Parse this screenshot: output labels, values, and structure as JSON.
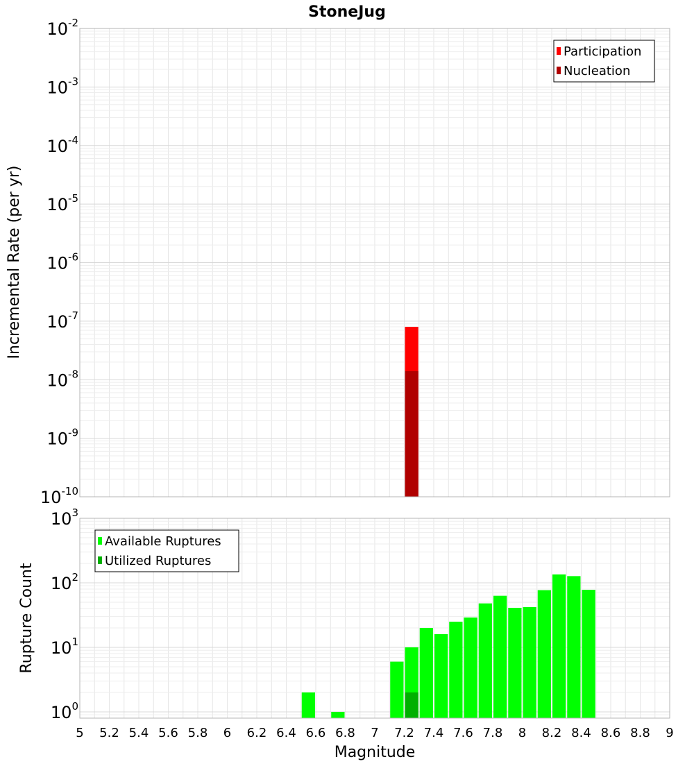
{
  "title": "StoneJug",
  "xlabel": "Magnitude",
  "x_ticks": [
    "5",
    "5.2",
    "5.4",
    "5.6",
    "5.8",
    "6",
    "6.2",
    "6.4",
    "6.6",
    "6.8",
    "7",
    "7.2",
    "7.4",
    "7.6",
    "7.8",
    "8",
    "8.2",
    "8.4",
    "8.6",
    "8.8",
    "9"
  ],
  "colors": {
    "participation": "#ff0000",
    "nucleation": "#b00000",
    "available": "#00ff00",
    "utilized": "#00b000",
    "grid": "#e6e6e6",
    "frame": "#b4b4b4"
  },
  "chart_data": [
    {
      "type": "bar",
      "ylabel": "Incremental Rate (per yr)",
      "y_scale": "log",
      "ylim": [
        1e-10,
        0.01
      ],
      "xlim": [
        5,
        9
      ],
      "x_tick_values": [
        5,
        5.2,
        5.4,
        5.6,
        5.8,
        6,
        6.2,
        6.4,
        6.6,
        6.8,
        7,
        7.2,
        7.4,
        7.6,
        7.8,
        8,
        8.2,
        8.4,
        8.6,
        8.8,
        9
      ],
      "y_ticks": [
        {
          "mantissa": "10",
          "exp": "-2",
          "value": 0.01
        },
        {
          "mantissa": "10",
          "exp": "-3",
          "value": 0.001
        },
        {
          "mantissa": "10",
          "exp": "-4",
          "value": 0.0001
        },
        {
          "mantissa": "10",
          "exp": "-5",
          "value": 1e-05
        },
        {
          "mantissa": "10",
          "exp": "-6",
          "value": 1e-06
        },
        {
          "mantissa": "10",
          "exp": "-7",
          "value": 1e-07
        },
        {
          "mantissa": "10",
          "exp": "-8",
          "value": 1e-08
        },
        {
          "mantissa": "10",
          "exp": "-9",
          "value": 1e-09
        },
        {
          "mantissa": "10",
          "exp": "-10",
          "value": 1e-10
        }
      ],
      "legend_position": "top-right",
      "series": [
        {
          "name": "Participation",
          "color_key": "participation",
          "x": [
            7.25
          ],
          "y": [
            8e-08
          ]
        },
        {
          "name": "Nucleation",
          "color_key": "nucleation",
          "x": [
            7.25
          ],
          "y": [
            1.4e-08
          ]
        }
      ]
    },
    {
      "type": "bar",
      "ylabel": "Rupture Count",
      "y_scale": "log",
      "ylim": [
        0.8,
        1000
      ],
      "xlim": [
        5,
        9
      ],
      "y_ticks": [
        {
          "mantissa": "10",
          "exp": "3",
          "value": 1000
        },
        {
          "mantissa": "10",
          "exp": "2",
          "value": 100
        },
        {
          "mantissa": "10",
          "exp": "1",
          "value": 10
        },
        {
          "mantissa": "10",
          "exp": "0",
          "value": 1
        }
      ],
      "legend_position": "top-left",
      "series": [
        {
          "name": "Available Ruptures",
          "color_key": "available",
          "x": [
            6.55,
            6.75,
            7.15,
            7.25,
            7.35,
            7.45,
            7.55,
            7.65,
            7.75,
            7.85,
            7.95,
            8.05,
            8.15,
            8.25,
            8.35,
            8.45
          ],
          "y": [
            2,
            1,
            6,
            10,
            20,
            16,
            25,
            29,
            48,
            63,
            41,
            42,
            77,
            135,
            127,
            78
          ]
        },
        {
          "name": "Utilized Ruptures",
          "color_key": "utilized",
          "x": [
            7.25
          ],
          "y": [
            2
          ]
        }
      ]
    }
  ]
}
